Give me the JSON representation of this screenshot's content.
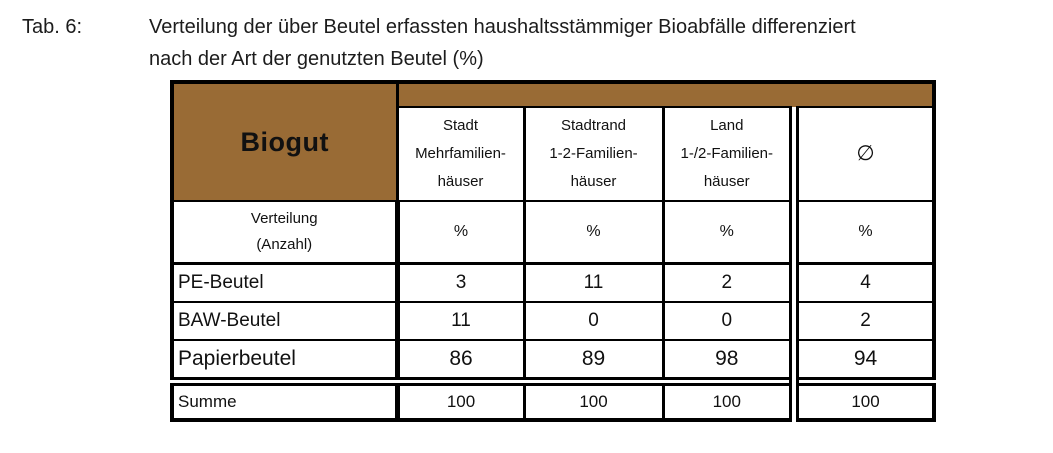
{
  "caption": {
    "label": "Tab. 6:",
    "line1": "Verteilung der über Beutel erfassten haushaltsstämmiger Bioabfälle differenziert",
    "line2": "nach der Art der genutzten Beutel (%)"
  },
  "table": {
    "corner_title": "Biogut",
    "header": {
      "col1": {
        "line1": "Stadt Mehrfamilien-",
        "line2": "häuser"
      },
      "col2": {
        "line1": "Stadtrand",
        "line2": "1-2-Familien-",
        "line3": "häuser"
      },
      "col3": {
        "line1": "Land",
        "line2": "1-/2-Familien-",
        "line3": "häuser"
      },
      "col4": {
        "symbol": "∅"
      }
    },
    "unit_row": {
      "label_line1": "Verteilung",
      "label_line2": "(Anzahl)",
      "values": [
        "%",
        "%",
        "%",
        "%"
      ]
    },
    "rows": [
      {
        "label": "PE-Beutel",
        "values": [
          "3",
          "11",
          "2",
          "4"
        ]
      },
      {
        "label": "BAW-Beutel",
        "values": [
          "11",
          "0",
          "0",
          "2"
        ]
      },
      {
        "label": "Papierbeutel",
        "values": [
          "86",
          "89",
          "98",
          "94"
        ]
      }
    ],
    "total_row": {
      "label": "Summe",
      "values": [
        "100",
        "100",
        "100",
        "100"
      ]
    }
  },
  "colors": {
    "header_brown": "#996B35",
    "border_black": "#000000",
    "text": "#1A1A1A",
    "background": "#FFFFFF"
  }
}
